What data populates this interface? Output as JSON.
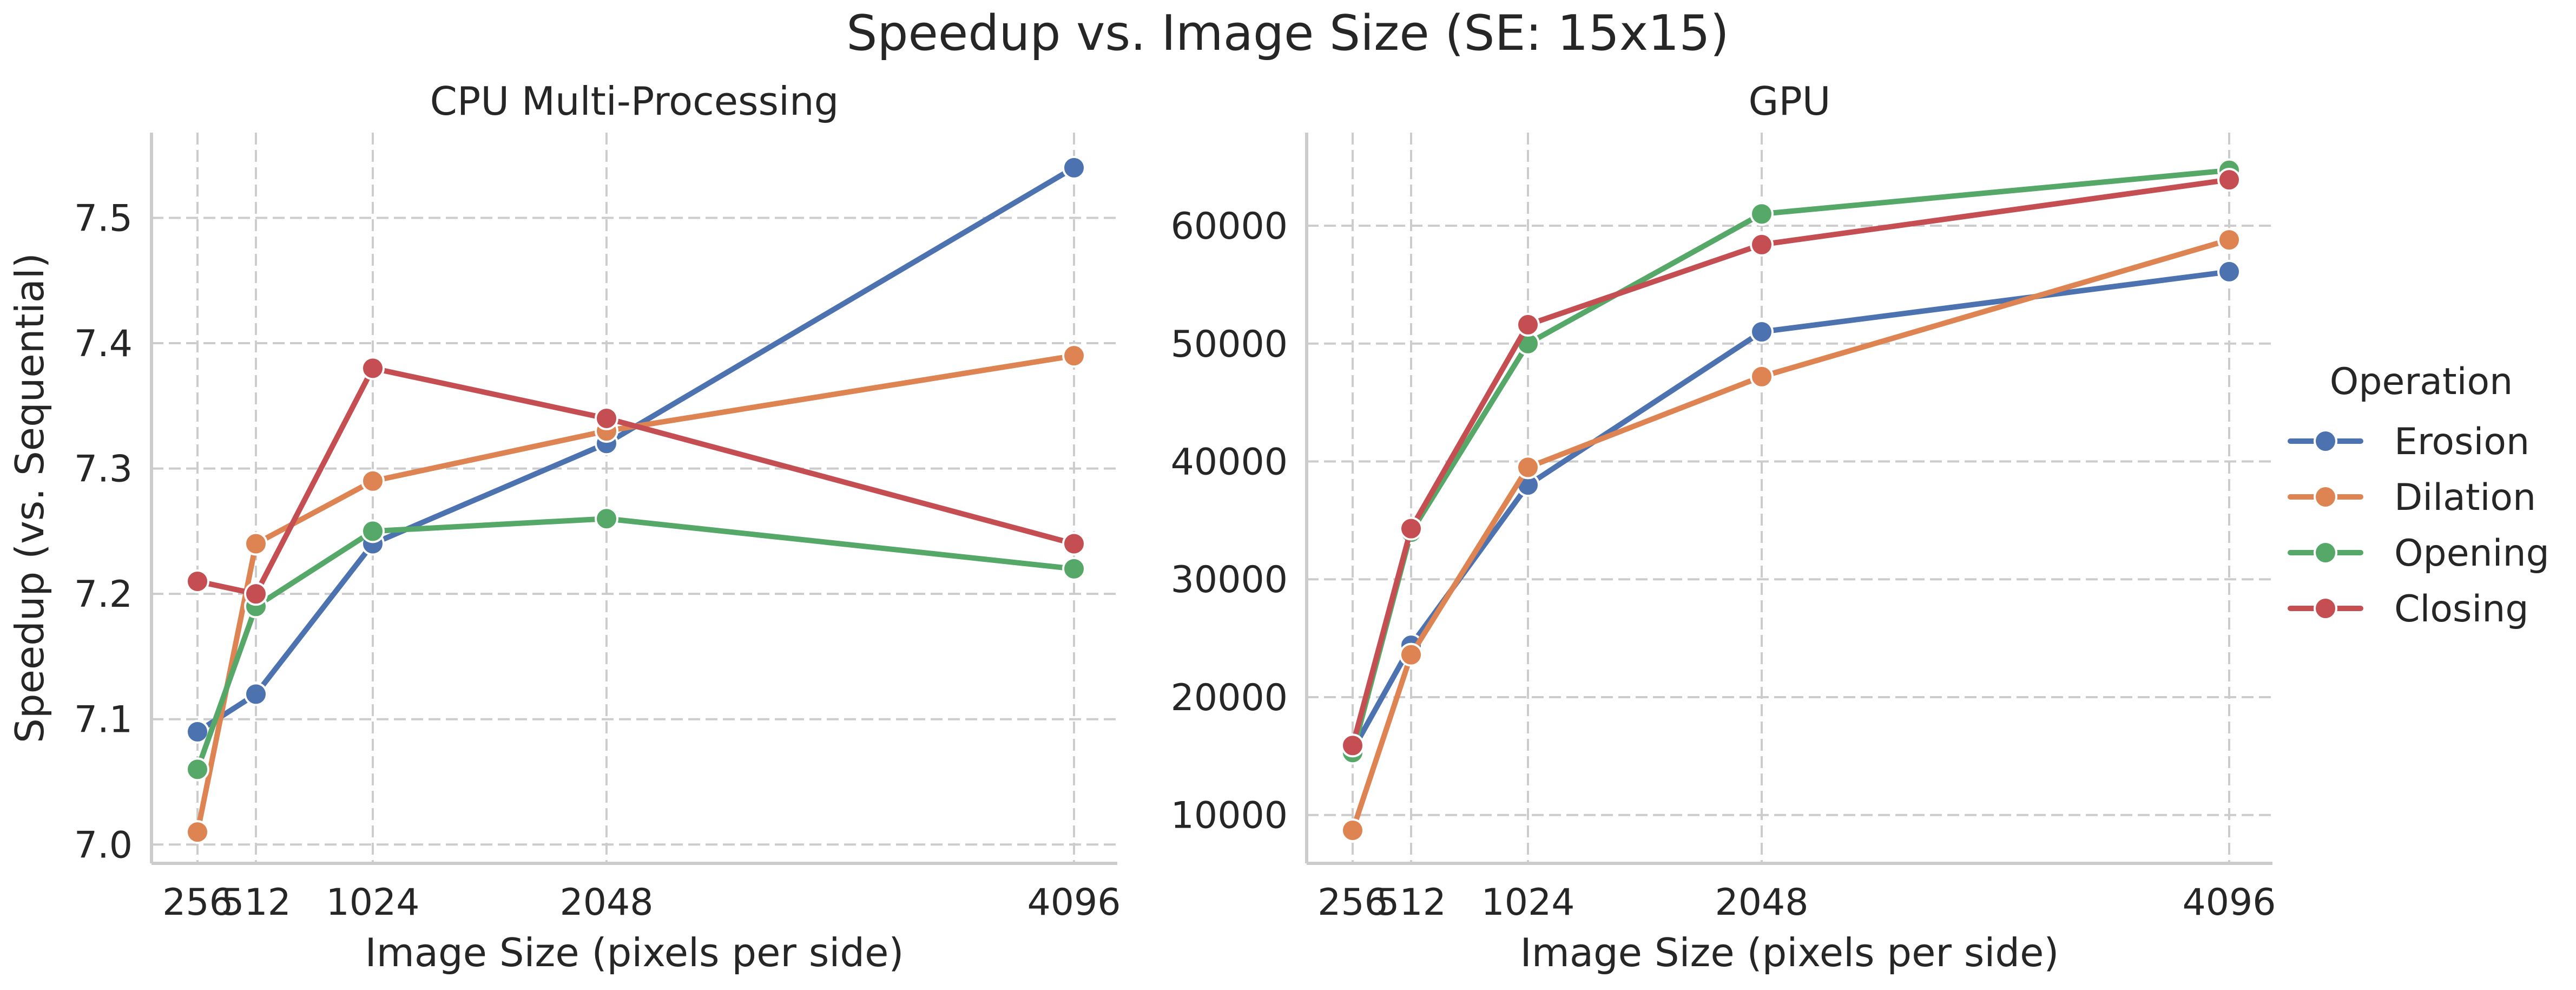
{
  "figure": {
    "suptitle": "Speedup vs. Image Size (SE: 15x15)",
    "legend_title": "Operation",
    "legend_placement": "right"
  },
  "series_styles": [
    {
      "name": "Erosion",
      "color": "#4c72b0"
    },
    {
      "name": "Dilation",
      "color": "#dd8452"
    },
    {
      "name": "Opening",
      "color": "#55a868"
    },
    {
      "name": "Closing",
      "color": "#c44e52"
    }
  ],
  "chart_data": [
    {
      "type": "line",
      "title": "CPU Multi-Processing",
      "xlabel": "Image Size (pixels per side)",
      "ylabel": "Speedup (vs. Sequential)",
      "x": [
        256,
        512,
        1024,
        2048,
        4096
      ],
      "xticks": [
        "256",
        "512",
        "1024",
        "2048",
        "4096"
      ],
      "yticks": [
        "7.0",
        "7.1",
        "7.2",
        "7.3",
        "7.4",
        "7.5"
      ],
      "ytick_values": [
        7.0,
        7.1,
        7.2,
        7.3,
        7.4,
        7.5
      ],
      "ylim": [
        6.985,
        7.568
      ],
      "grid": true,
      "series": [
        {
          "name": "Erosion",
          "values": [
            7.09,
            7.12,
            7.24,
            7.32,
            7.54
          ]
        },
        {
          "name": "Dilation",
          "values": [
            7.01,
            7.24,
            7.29,
            7.33,
            7.39
          ]
        },
        {
          "name": "Opening",
          "values": [
            7.06,
            7.19,
            7.25,
            7.26,
            7.22
          ]
        },
        {
          "name": "Closing",
          "values": [
            7.21,
            7.2,
            7.38,
            7.34,
            7.24
          ]
        }
      ]
    },
    {
      "type": "line",
      "title": "GPU",
      "xlabel": "Image Size (pixels per side)",
      "ylabel": "",
      "x": [
        256,
        512,
        1024,
        2048,
        4096
      ],
      "xticks": [
        "256",
        "512",
        "1024",
        "2048",
        "4096"
      ],
      "yticks": [
        "10000",
        "20000",
        "30000",
        "40000",
        "50000",
        "60000"
      ],
      "ytick_values": [
        10000,
        20000,
        30000,
        40000,
        50000,
        60000
      ],
      "ylim": [
        5900,
        67900
      ],
      "grid": true,
      "series": [
        {
          "name": "Erosion",
          "values": [
            15500,
            24400,
            38000,
            51000,
            56100
          ]
        },
        {
          "name": "Dilation",
          "values": [
            8700,
            23600,
            39500,
            47200,
            58800
          ]
        },
        {
          "name": "Opening",
          "values": [
            15300,
            34000,
            50000,
            61000,
            64700
          ]
        },
        {
          "name": "Closing",
          "values": [
            15900,
            34300,
            51600,
            58400,
            63900
          ]
        }
      ]
    }
  ]
}
